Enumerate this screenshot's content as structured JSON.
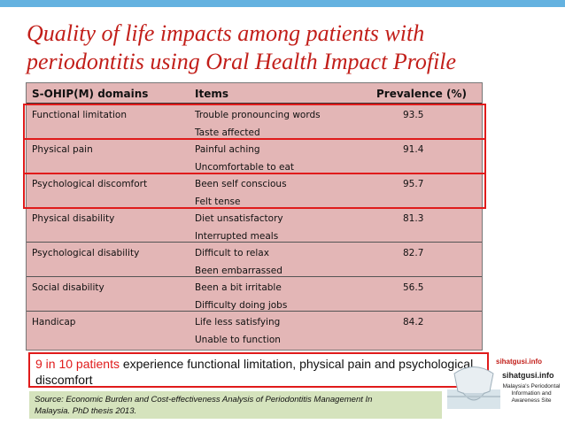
{
  "slide": {
    "title_line1": "Quality of  life impacts among patients with",
    "title_line2": "periodontitis using Oral Health Impact Profile"
  },
  "table": {
    "headers": [
      "S-OHIP(M) domains",
      "Items",
      "Prevalence (%)"
    ],
    "rows": [
      {
        "domain": "Functional limitation",
        "item1": "Trouble pronouncing words",
        "item2": "Taste affected",
        "prevalence": "93.5"
      },
      {
        "domain": "Physical pain",
        "item1": "Painful aching",
        "item2": "Uncomfortable to eat",
        "prevalence": "91.4"
      },
      {
        "domain": "Psychological discomfort",
        "item1": "Been self conscious",
        "item2": "Felt tense",
        "prevalence": "95.7"
      },
      {
        "domain": "Physical disability",
        "item1": "Diet unsatisfactory",
        "item2": "Interrupted meals",
        "prevalence": "81.3"
      },
      {
        "domain": "Psychological disability",
        "item1": "Difficult to relax",
        "item2": "Been embarrassed",
        "prevalence": "82.7"
      },
      {
        "domain": "Social disability",
        "item1": "Been a bit irritable",
        "item2": "Difficulty doing jobs",
        "prevalence": "56.5"
      },
      {
        "domain": "Handicap",
        "item1": "Life less satisfying",
        "item2": "Unable to function",
        "prevalence": "84.2"
      }
    ]
  },
  "callout": {
    "highlight": "9 in 10 patients",
    "rest": " experience functional limitation, physical pain and psychological discomfort"
  },
  "source": {
    "line1": "Source: Economic Burden and Cost-effectiveness Analysis of Periodontitis Management In",
    "line2": "Malaysia.   PhD thesis 2013."
  },
  "logo": {
    "url_small": "sihatgusi.info",
    "url_large": "sihatgusi.info",
    "description": "Malaysia's Periodontal Information and Awareness Site"
  },
  "colors": {
    "title": "#c21f1a",
    "highlight_border": "#e01b1b",
    "table_bg": "#e3b6b6",
    "source_bg": "#d5e3bd",
    "top_bar": "#64b2e0"
  }
}
